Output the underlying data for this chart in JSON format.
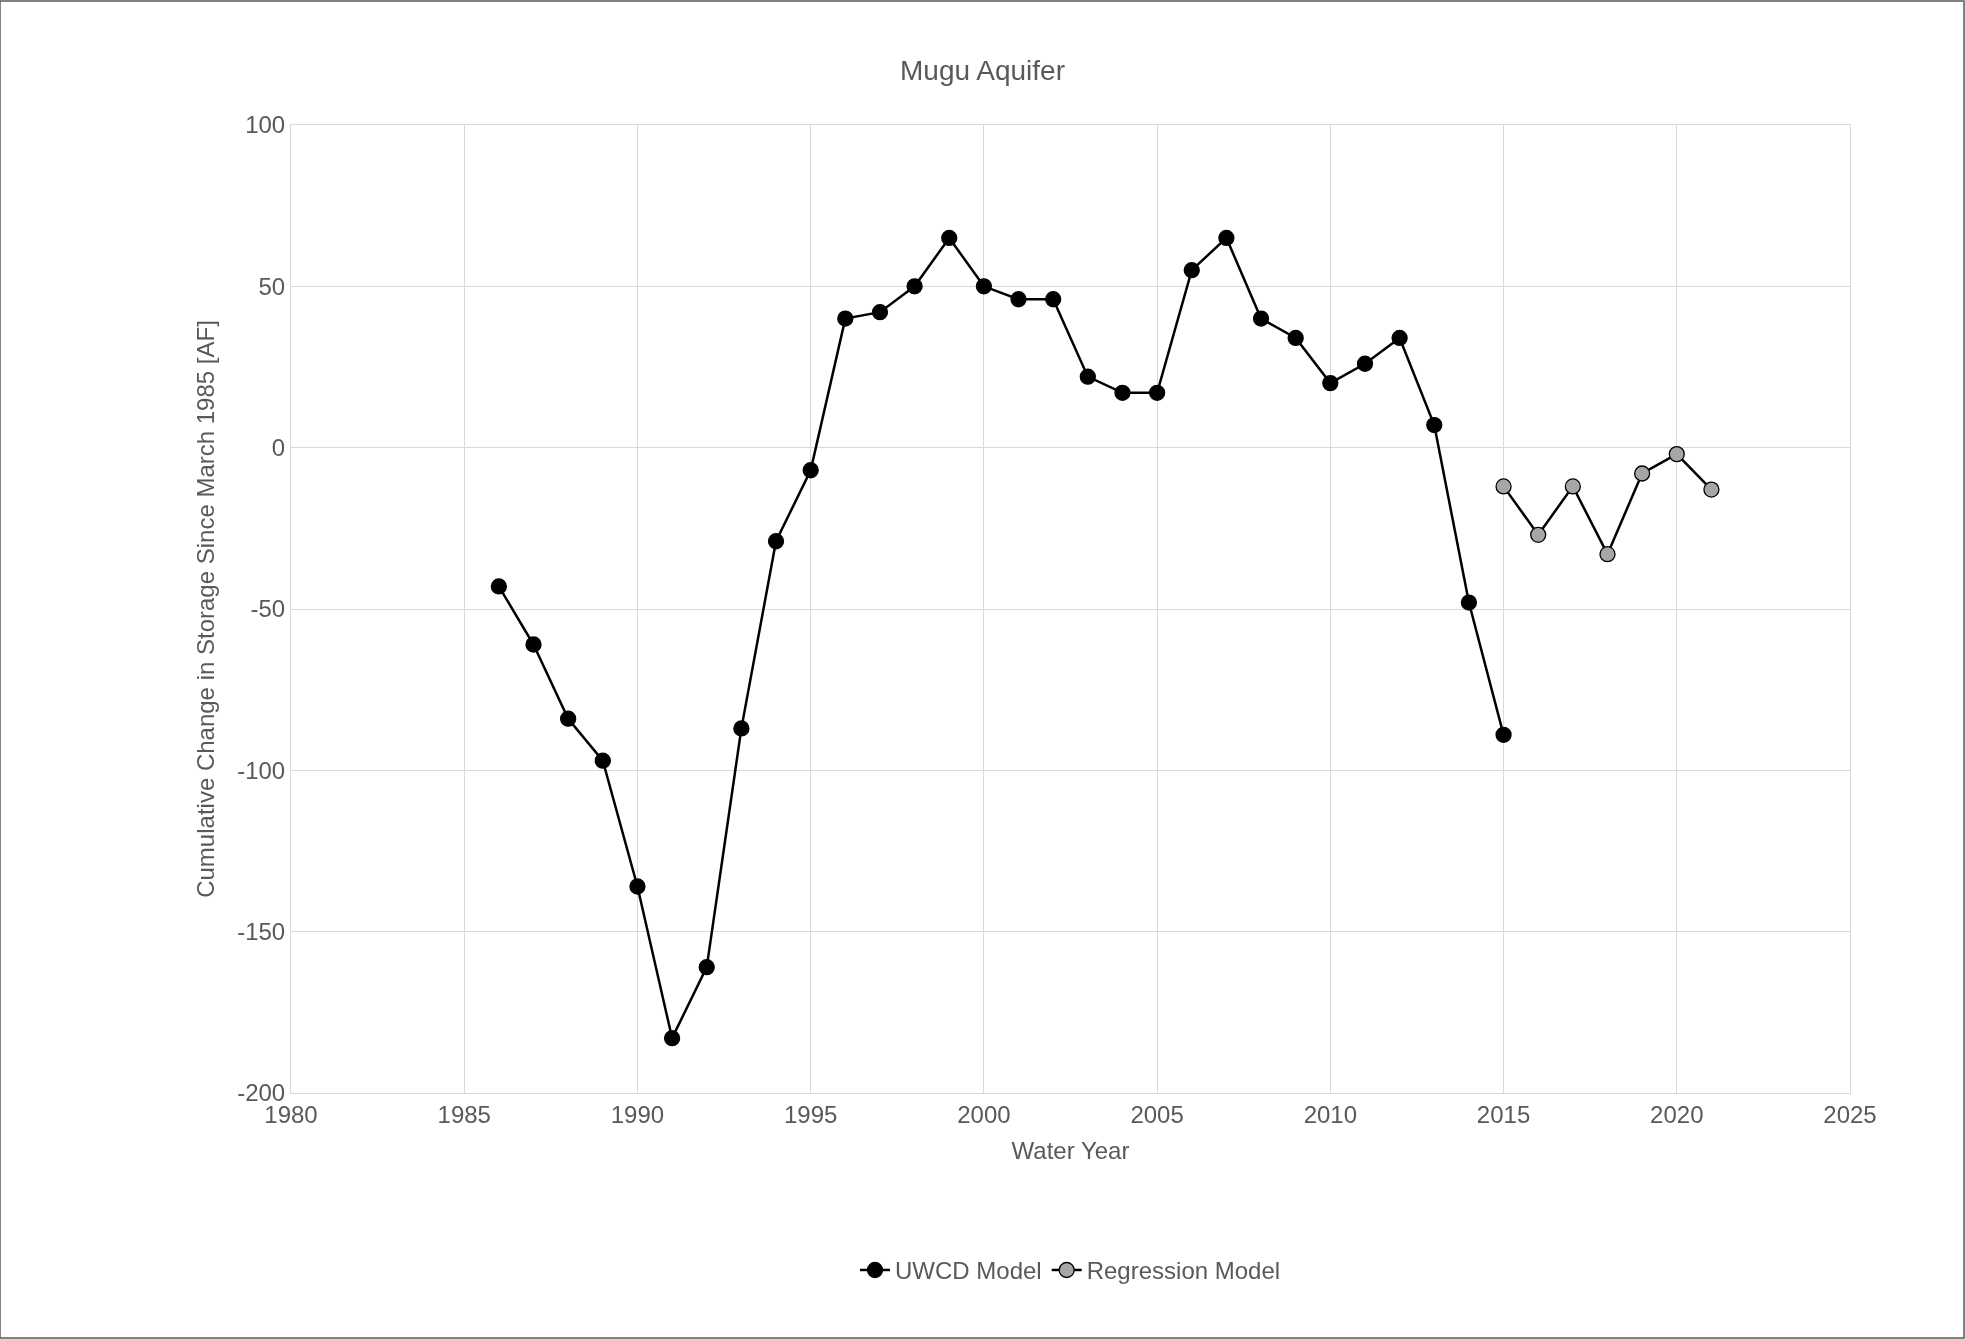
{
  "chart_data": {
    "type": "line",
    "title": "Mugu Aquifer",
    "xlabel": "Water Year",
    "ylabel": "Cumulative Change in Storage Since March 1985 [AF]",
    "series": [
      {
        "name": "UWCD Model",
        "color": "#000000",
        "x": [
          1986,
          1987,
          1988,
          1989,
          1990,
          1991,
          1992,
          1993,
          1994,
          1995,
          1996,
          1997,
          1998,
          1999,
          2000,
          2001,
          2002,
          2003,
          2004,
          2005,
          2006,
          2007,
          2008,
          2009,
          2010,
          2011,
          2012,
          2013,
          2014,
          2015
        ],
        "values": [
          -43,
          -61,
          -84,
          -97,
          -136,
          -183,
          -161,
          -87,
          -29,
          -7,
          40,
          42,
          50,
          65,
          50,
          46,
          46,
          22,
          17,
          17,
          55,
          65,
          40,
          34,
          20,
          26,
          34,
          7,
          -48,
          -89
        ]
      },
      {
        "name": "Regression Model",
        "color": "#a6a6a6",
        "x": [
          2015,
          2016,
          2017,
          2018,
          2019,
          2020,
          2021
        ],
        "values": [
          -12,
          -27,
          -12,
          -33,
          -8,
          -2,
          -13
        ]
      }
    ],
    "xlim": [
      1980,
      2025
    ],
    "xticks": [
      1980,
      1985,
      1990,
      1995,
      2000,
      2005,
      2010,
      2015,
      2020,
      2025
    ],
    "ylim": [
      -200,
      100
    ],
    "yticks": [
      -200,
      -150,
      -100,
      -50,
      0,
      50,
      100
    ],
    "grid": true,
    "legend": "bottom",
    "marker": "circle",
    "line_style": "solid"
  }
}
